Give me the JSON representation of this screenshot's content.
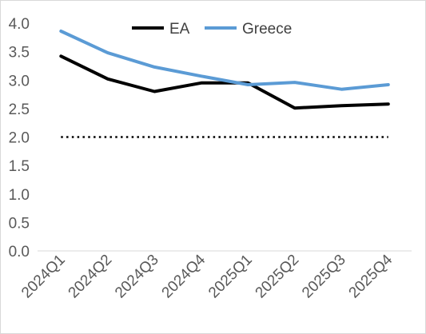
{
  "chart_data": {
    "type": "line",
    "categories": [
      "2024Q1",
      "2024Q2",
      "2024Q3",
      "2024Q4",
      "2025Q1",
      "2025Q2",
      "2025Q3",
      "2025Q4"
    ],
    "series": [
      {
        "name": "EA",
        "color": "#000000",
        "values": [
          3.42,
          3.02,
          2.8,
          2.95,
          2.95,
          2.51,
          2.55,
          2.58
        ]
      },
      {
        "name": "Greece",
        "color": "#5b9bd5",
        "values": [
          3.86,
          3.48,
          3.23,
          3.07,
          2.92,
          2.96,
          2.84,
          2.92
        ]
      }
    ],
    "reference_line": {
      "value": 2.0,
      "style": "dotted",
      "color": "#000000"
    },
    "y_ticks": [
      "0.0",
      "0.5",
      "1.0",
      "1.5",
      "2.0",
      "2.5",
      "3.0",
      "3.5",
      "4.0"
    ],
    "ylim": [
      0,
      4
    ],
    "grid": false,
    "legend_position": "top"
  }
}
